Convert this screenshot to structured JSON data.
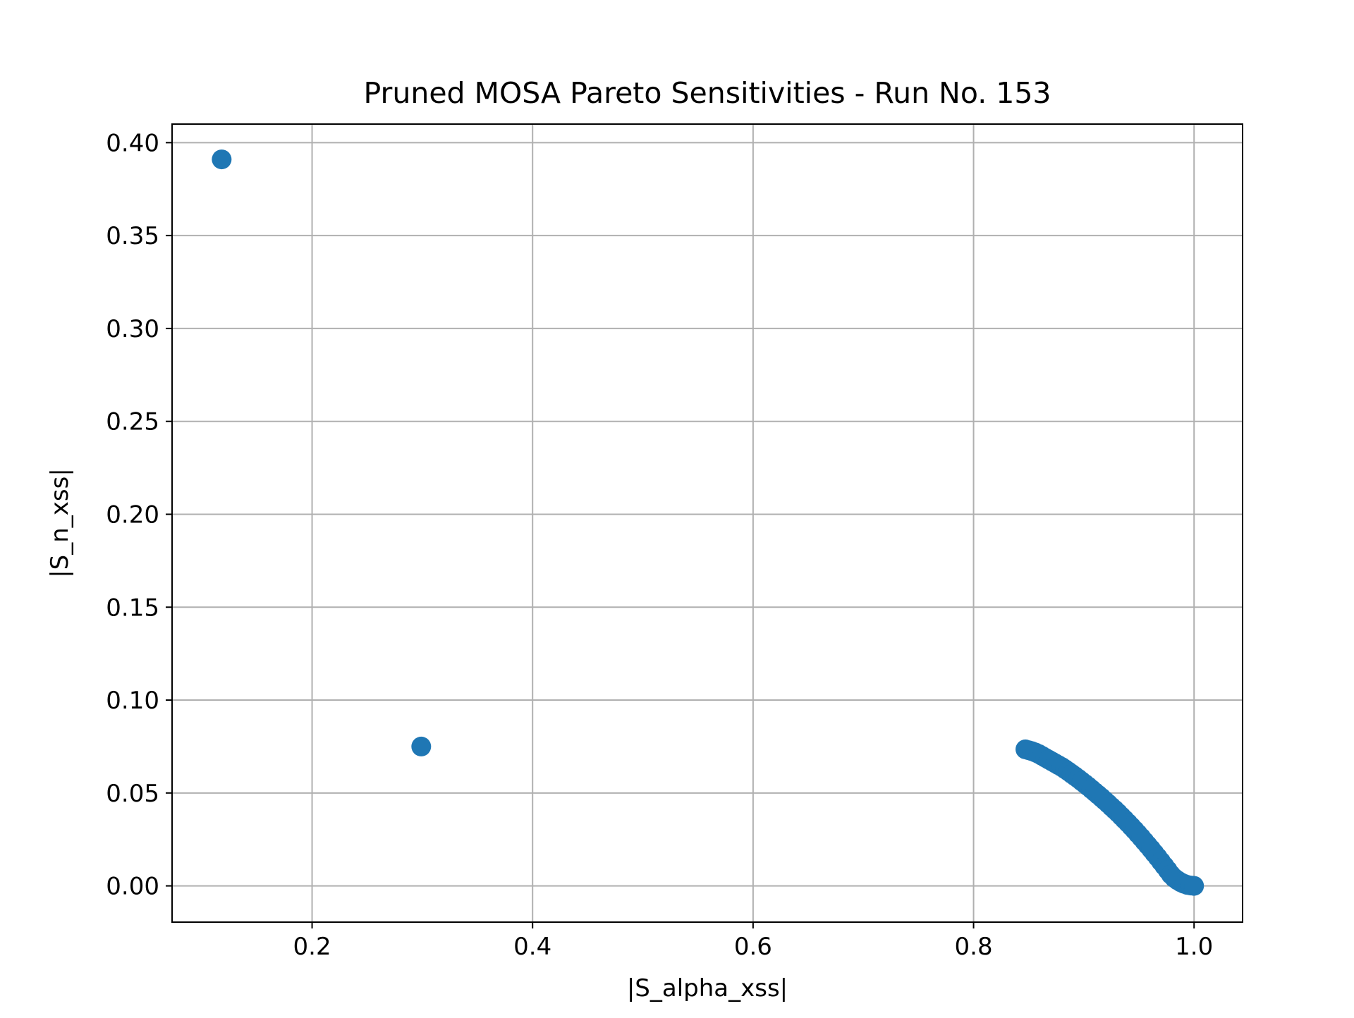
{
  "chart_data": {
    "type": "scatter",
    "title": "Pruned MOSA Pareto Sensitivities - Run No. 153",
    "xlabel": "|S_alpha_xss|",
    "ylabel": "|S_n_xss|",
    "xlim": [
      0.073,
      1.044
    ],
    "ylim": [
      -0.0195,
      0.41
    ],
    "xticks": [
      0.2,
      0.4,
      0.6,
      0.8,
      1.0
    ],
    "xtick_labels": [
      "0.2",
      "0.4",
      "0.6",
      "0.8",
      "1.0"
    ],
    "yticks": [
      0.0,
      0.05,
      0.1,
      0.15,
      0.2,
      0.25,
      0.3,
      0.35,
      0.4
    ],
    "ytick_labels": [
      "0.00",
      "0.05",
      "0.10",
      "0.15",
      "0.20",
      "0.25",
      "0.30",
      "0.35",
      "0.40"
    ],
    "grid": true,
    "legend": false,
    "marker_color": "#1f77b4",
    "series": [
      {
        "points": [
          [
            0.118,
            0.391
          ],
          [
            0.299,
            0.075
          ],
          [
            0.847,
            0.0735
          ],
          [
            0.85,
            0.073
          ],
          [
            0.853,
            0.0725
          ],
          [
            0.856,
            0.0718
          ],
          [
            0.859,
            0.071
          ],
          [
            0.862,
            0.07
          ],
          [
            0.865,
            0.069
          ],
          [
            0.868,
            0.068
          ],
          [
            0.871,
            0.067
          ],
          [
            0.874,
            0.066
          ],
          [
            0.877,
            0.065
          ],
          [
            0.88,
            0.064
          ],
          [
            0.883,
            0.0628
          ],
          [
            0.886,
            0.0616
          ],
          [
            0.889,
            0.0603
          ],
          [
            0.892,
            0.059
          ],
          [
            0.895,
            0.0577
          ],
          [
            0.898,
            0.0563
          ],
          [
            0.901,
            0.0549
          ],
          [
            0.904,
            0.0535
          ],
          [
            0.907,
            0.052
          ],
          [
            0.91,
            0.0505
          ],
          [
            0.913,
            0.049
          ],
          [
            0.916,
            0.0475
          ],
          [
            0.919,
            0.0459
          ],
          [
            0.922,
            0.0443
          ],
          [
            0.925,
            0.0426
          ],
          [
            0.928,
            0.041
          ],
          [
            0.931,
            0.0393
          ],
          [
            0.934,
            0.0375
          ],
          [
            0.937,
            0.0357
          ],
          [
            0.94,
            0.0339
          ],
          [
            0.943,
            0.032
          ],
          [
            0.946,
            0.0301
          ],
          [
            0.949,
            0.0281
          ],
          [
            0.952,
            0.0261
          ],
          [
            0.955,
            0.024
          ],
          [
            0.958,
            0.0219
          ],
          [
            0.961,
            0.0198
          ],
          [
            0.964,
            0.0176
          ],
          [
            0.967,
            0.0154
          ],
          [
            0.97,
            0.0131
          ],
          [
            0.973,
            0.0108
          ],
          [
            0.976,
            0.0085
          ],
          [
            0.979,
            0.0061
          ],
          [
            0.982,
            0.0043
          ],
          [
            0.985,
            0.003
          ],
          [
            0.988,
            0.0019
          ],
          [
            0.991,
            0.0011
          ],
          [
            0.994,
            0.0005
          ],
          [
            0.997,
            0.0002
          ],
          [
            0.999,
            0.0001
          ],
          [
            1.0,
            0.0
          ]
        ]
      }
    ]
  }
}
